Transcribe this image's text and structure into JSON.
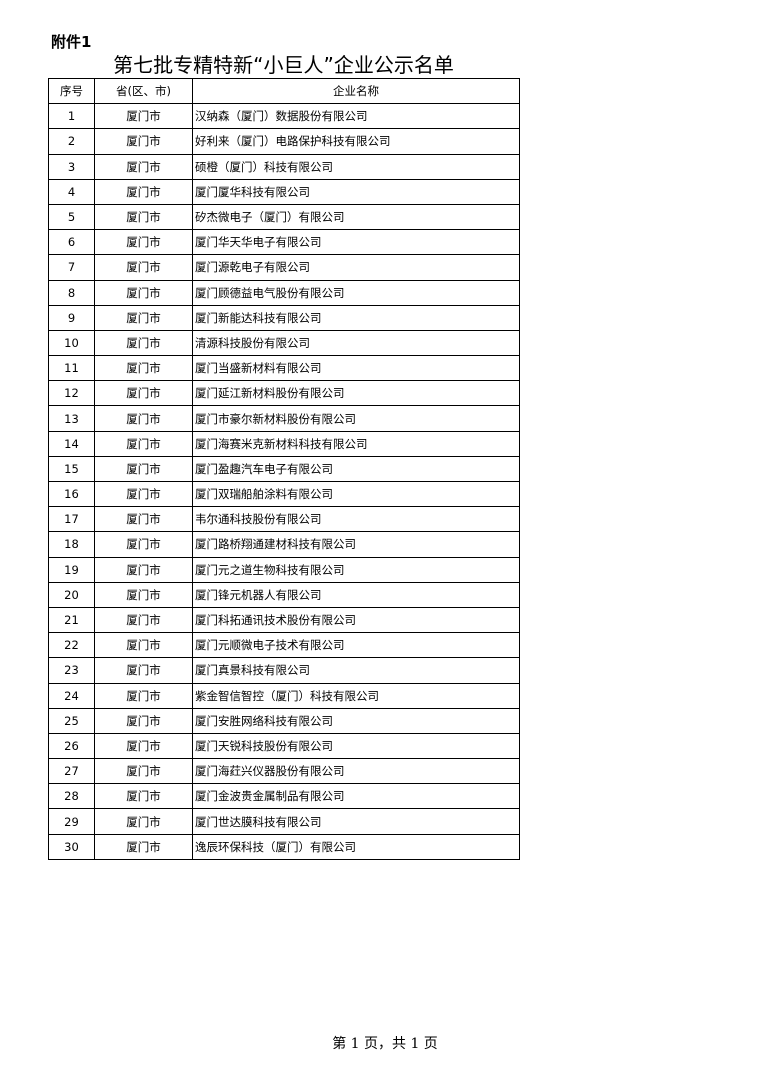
{
  "attachment_label": "附件1",
  "title": "第七批专精特新“小巨人”企业公示名单",
  "table": {
    "headers": [
      "序号",
      "省(区、市)",
      "企业名称"
    ],
    "rows": [
      [
        "1",
        "厦门市",
        "汉纳森（厦门）数据股份有限公司"
      ],
      [
        "2",
        "厦门市",
        "好利来（厦门）电路保护科技有限公司"
      ],
      [
        "3",
        "厦门市",
        "硕橙（厦门）科技有限公司"
      ],
      [
        "4",
        "厦门市",
        "厦门厦华科技有限公司"
      ],
      [
        "5",
        "厦门市",
        "矽杰微电子（厦门）有限公司"
      ],
      [
        "6",
        "厦门市",
        "厦门华天华电子有限公司"
      ],
      [
        "7",
        "厦门市",
        "厦门源乾电子有限公司"
      ],
      [
        "8",
        "厦门市",
        "厦门顾德益电气股份有限公司"
      ],
      [
        "9",
        "厦门市",
        "厦门新能达科技有限公司"
      ],
      [
        "10",
        "厦门市",
        "清源科技股份有限公司"
      ],
      [
        "11",
        "厦门市",
        "厦门当盛新材料有限公司"
      ],
      [
        "12",
        "厦门市",
        "厦门延江新材料股份有限公司"
      ],
      [
        "13",
        "厦门市",
        "厦门市豪尔新材料股份有限公司"
      ],
      [
        "14",
        "厦门市",
        "厦门海赛米克新材料科技有限公司"
      ],
      [
        "15",
        "厦门市",
        "厦门盈趣汽车电子有限公司"
      ],
      [
        "16",
        "厦门市",
        "厦门双瑞船舶涂料有限公司"
      ],
      [
        "17",
        "厦门市",
        "韦尔通科技股份有限公司"
      ],
      [
        "18",
        "厦门市",
        "厦门路桥翔通建材科技有限公司"
      ],
      [
        "19",
        "厦门市",
        "厦门元之道生物科技有限公司"
      ],
      [
        "20",
        "厦门市",
        "厦门锋元机器人有限公司"
      ],
      [
        "21",
        "厦门市",
        "厦门科拓通讯技术股份有限公司"
      ],
      [
        "22",
        "厦门市",
        "厦门元顺微电子技术有限公司"
      ],
      [
        "23",
        "厦门市",
        "厦门真景科技有限公司"
      ],
      [
        "24",
        "厦门市",
        "紫金智信智控（厦门）科技有限公司"
      ],
      [
        "25",
        "厦门市",
        "厦门安胜网络科技有限公司"
      ],
      [
        "26",
        "厦门市",
        "厦门天锐科技股份有限公司"
      ],
      [
        "27",
        "厦门市",
        "厦门海荭兴仪器股份有限公司"
      ],
      [
        "28",
        "厦门市",
        "厦门金波贵金属制品有限公司"
      ],
      [
        "29",
        "厦门市",
        "厦门世达膜科技有限公司"
      ],
      [
        "30",
        "厦门市",
        "逸辰环保科技（厦门）有限公司"
      ]
    ]
  },
  "footer": "第 1 页，共 1 页"
}
